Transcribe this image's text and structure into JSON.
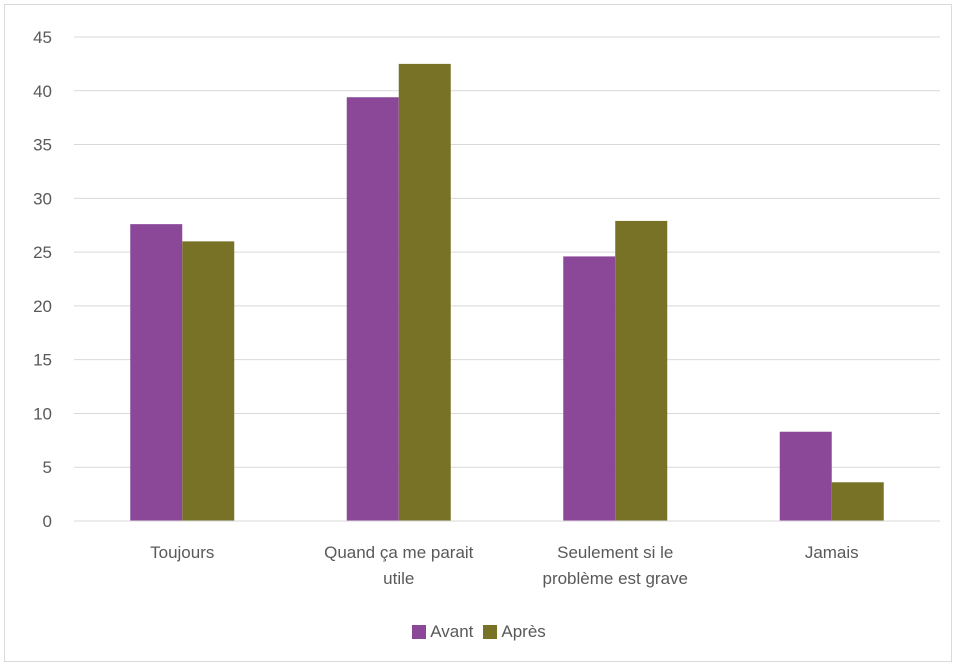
{
  "chart_data": {
    "type": "bar",
    "title": "",
    "xlabel": "",
    "ylabel": "",
    "categories": [
      "Toujours",
      "Quand ça me parait utile",
      "Seulement si le problème est grave",
      "Jamais"
    ],
    "category_lines": [
      [
        "Toujours"
      ],
      [
        "Quand ça me parait",
        "utile"
      ],
      [
        "Seulement si le",
        "problème est grave"
      ],
      [
        "Jamais"
      ]
    ],
    "series": [
      {
        "name": "Avant",
        "color": "#8b4899",
        "values": [
          27.6,
          39.4,
          24.6,
          8.3
        ]
      },
      {
        "name": "Après",
        "color": "#787226",
        "values": [
          26.0,
          42.5,
          27.9,
          3.6
        ]
      }
    ],
    "ylim": [
      0,
      45
    ],
    "yticks": [
      0,
      5,
      10,
      15,
      20,
      25,
      30,
      35,
      40,
      45
    ],
    "grid": true,
    "legend": "bottom"
  }
}
